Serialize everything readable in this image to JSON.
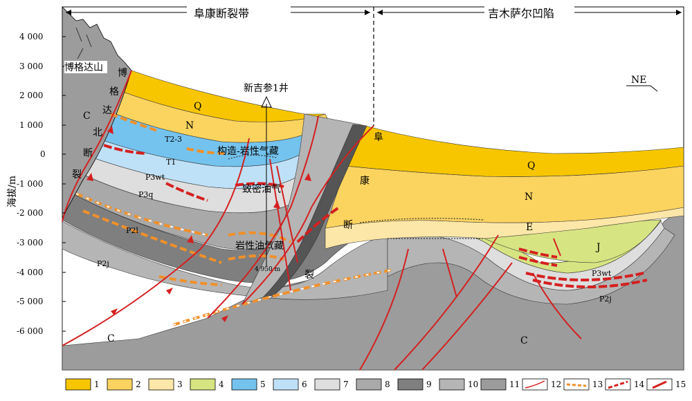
{
  "regions": {
    "left": "阜康断裂带",
    "right": "吉木萨尔凹陷"
  },
  "axis": {
    "ylabel": "海拔/m",
    "ticks": [
      "4 000",
      "3 000",
      "2 000",
      "1 000",
      "0",
      "-1 000",
      "-2 000",
      "-3 000",
      "-4 000",
      "-5 000",
      "-6 000"
    ]
  },
  "orientation": "NE",
  "well": {
    "name": "新吉参1井",
    "depth": "4 950 m"
  },
  "mountain": "博格达山",
  "faults": {
    "bogeda_north": [
      "博",
      "格",
      "达",
      "北",
      "断",
      "裂"
    ],
    "fukang": [
      "阜",
      "康",
      "断",
      "裂"
    ]
  },
  "reservoirs": {
    "structural_lithologic_gas": "构造-岩性气藏",
    "tight_oil_gas": "致密油气",
    "lithologic_oil_gas": "岩性油气藏"
  },
  "strata_labels": {
    "Q_left": "Q",
    "N_left": "N",
    "T23": "T2-3",
    "T1": "T1",
    "P3wt_left": "P3wt",
    "P3q": "P3q",
    "P2l": "P2l",
    "P2j_left": "P2j",
    "C_top_left": "C",
    "C_bottom_left": "C",
    "Q_right": "Q",
    "N_right": "N",
    "E": "E",
    "J": "J",
    "P3wt_right": "P3wt",
    "P2j_right": "P2j",
    "C_right": "C"
  },
  "legend": [
    {
      "num": "1",
      "kind": "fill",
      "color": "#f7c600"
    },
    {
      "num": "2",
      "kind": "fill",
      "color": "#fbd35f"
    },
    {
      "num": "3",
      "kind": "fill",
      "color": "#fde7a8"
    },
    {
      "num": "4",
      "kind": "fill",
      "color": "#d7e482"
    },
    {
      "num": "5",
      "kind": "fill",
      "color": "#74c3ee"
    },
    {
      "num": "6",
      "kind": "fill",
      "color": "#bfe1f7"
    },
    {
      "num": "7",
      "kind": "fill",
      "color": "#dedede"
    },
    {
      "num": "8",
      "kind": "fill",
      "color": "#a9a9a9"
    },
    {
      "num": "9",
      "kind": "fill",
      "color": "#7f7f7f"
    },
    {
      "num": "10",
      "kind": "fill",
      "color": "#b5b5b5"
    },
    {
      "num": "11",
      "kind": "fill",
      "color": "#9c9c9c"
    },
    {
      "num": "12",
      "kind": "fault"
    },
    {
      "num": "13",
      "kind": "dash-orange"
    },
    {
      "num": "14",
      "kind": "dash-red"
    },
    {
      "num": "15",
      "kind": "arrow"
    }
  ],
  "colors": {
    "Q": "#f7c600",
    "N": "#fbd35f",
    "E": "#fde7a8",
    "J": "#d7e482",
    "T23": "#74c3ee",
    "T1": "#bfe1f7",
    "P3wt": "#dedede",
    "P3q": "#a9a9a9",
    "P2l": "#7f7f7f",
    "P2j": "#b5b5b5",
    "C": "#9c9c9c",
    "fault": "#d42020"
  }
}
